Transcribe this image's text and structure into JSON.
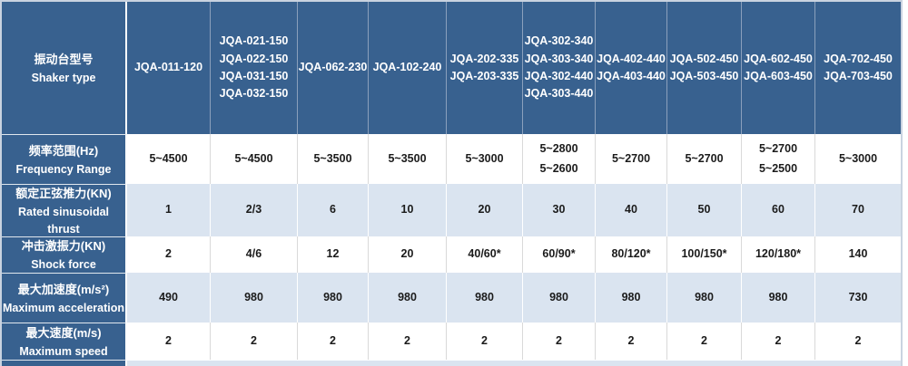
{
  "table": {
    "corner": {
      "zh": "振动台型号",
      "en": "Shaker type"
    },
    "columns": [
      {
        "label": "JQA-011-120"
      },
      {
        "label": "JQA-021-150\nJQA-022-150\nJQA-031-150\nJQA-032-150"
      },
      {
        "label": "JQA-062-230"
      },
      {
        "label": "JQA-102-240"
      },
      {
        "label": "JQA-202-335\nJQA-203-335"
      },
      {
        "label": "JQA-302-340\nJQA-303-340\nJQA-302-440\nJQA-303-440"
      },
      {
        "label": "JQA-402-440\nJQA-403-440"
      },
      {
        "label": "JQA-502-450\nJQA-503-450"
      },
      {
        "label": "JQA-602-450\nJQA-603-450"
      },
      {
        "label": "JQA-702-450\nJQA-703-450"
      }
    ],
    "rows": [
      {
        "zh": "频率范围(Hz)",
        "en": "Frequency Range",
        "values": [
          "5~4500",
          "5~4500",
          "5~3500",
          "5~3500",
          "5~3000",
          "5~2800\n5~2600",
          "5~2700",
          "5~2700",
          "5~2700\n5~2500",
          "5~3000"
        ]
      },
      {
        "zh": "额定正弦推力(KN)",
        "en": "Rated sinusoidal thrust",
        "values": [
          "1",
          "2/3",
          "6",
          "10",
          "20",
          "30",
          "40",
          "50",
          "60",
          "70"
        ]
      },
      {
        "zh": "冲击激振力(KN)",
        "en": "Shock force",
        "values": [
          "2",
          "4/6",
          "12",
          "20",
          "40/60*",
          "60/90*",
          "80/120*",
          "100/150*",
          "120/180*",
          "140"
        ]
      },
      {
        "zh": "最大加速度(m/s²)",
        "en": "Maximum acceleration",
        "values": [
          "490",
          "980",
          "980",
          "980",
          "980",
          "980",
          "980",
          "980",
          "980",
          "730"
        ]
      },
      {
        "zh": "最大速度(m/s)",
        "en": "Maximum speed",
        "values": [
          "2",
          "2",
          "2",
          "2",
          "2",
          "2",
          "2",
          "2",
          "2",
          "2"
        ]
      }
    ],
    "colors": {
      "header_blue": "#38618F",
      "row_stripe_light_blue": "#DAE4F0",
      "row_white": "#FFFFFF",
      "header_text": "#FFFFFF",
      "data_text": "#1B1B1B"
    }
  }
}
